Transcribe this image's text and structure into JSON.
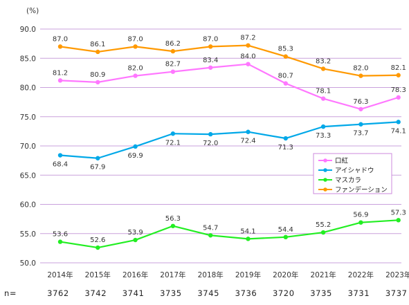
{
  "chart_data": {
    "type": "line",
    "unit_label": "(%)",
    "categories": [
      "2014年",
      "2015年",
      "2016年",
      "2017年",
      "2018年",
      "2019年",
      "2020年",
      "2021年",
      "2022年",
      "2023年"
    ],
    "ylim": [
      50,
      90
    ],
    "yticks": [
      "50.0",
      "55.0",
      "60.0",
      "65.0",
      "70.0",
      "75.0",
      "80.0",
      "85.0",
      "90.0"
    ],
    "grid": true,
    "legend_position": "right",
    "n_prefix": "n=",
    "n_values": [
      "3762",
      "3742",
      "3741",
      "3735",
      "3745",
      "3736",
      "3720",
      "3735",
      "3731",
      "3737"
    ],
    "series": [
      {
        "name": "口紅",
        "color": "#ff77ff",
        "values": [
          81.2,
          80.9,
          82.0,
          82.7,
          83.4,
          84.0,
          80.7,
          78.1,
          76.3,
          78.3
        ]
      },
      {
        "name": "アイシャドウ",
        "color": "#00a8e8",
        "values": [
          68.4,
          67.9,
          69.9,
          72.1,
          72.0,
          72.4,
          71.3,
          73.3,
          73.7,
          74.1
        ]
      },
      {
        "name": "マスカラ",
        "color": "#22ee22",
        "values": [
          53.6,
          52.6,
          53.9,
          56.3,
          54.7,
          54.1,
          54.4,
          55.2,
          56.9,
          57.3
        ]
      },
      {
        "name": "ファンデーション",
        "color": "#ff9900",
        "values": [
          87.0,
          86.1,
          87.0,
          86.2,
          87.0,
          87.2,
          85.3,
          83.2,
          82.0,
          82.1
        ]
      }
    ],
    "grid_color": "#c9a0dc",
    "legend_border_color": "#cc88dd"
  }
}
